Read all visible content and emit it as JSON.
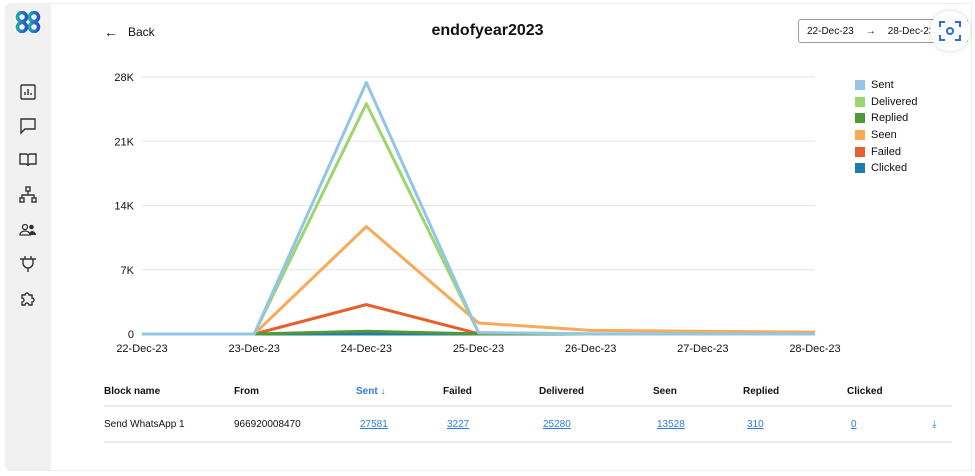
{
  "header": {
    "back_label": "Back",
    "title": "endofyear2023",
    "date_from": "22-Dec-23",
    "date_arrow": "→",
    "date_to": "28-Dec-23"
  },
  "sidebar": {
    "items": [
      "reports-icon",
      "chat-icon",
      "book-icon",
      "sitemap-icon",
      "users-icon",
      "plug-icon",
      "puzzle-icon"
    ]
  },
  "chart_data": {
    "type": "line",
    "x": [
      "22-Dec-23",
      "23-Dec-23",
      "24-Dec-23",
      "25-Dec-23",
      "26-Dec-23",
      "27-Dec-23",
      "28-Dec-23"
    ],
    "yticks": [
      "0",
      "7K",
      "14K",
      "21K",
      "28K"
    ],
    "ylim": [
      0,
      28000
    ],
    "grid": true,
    "legend_position": "right",
    "series": [
      {
        "name": "Sent",
        "color": "#93c5e6",
        "values": [
          0,
          0,
          27400,
          150,
          20,
          10,
          1
        ]
      },
      {
        "name": "Delivered",
        "color": "#9dd56e",
        "values": [
          0,
          0,
          25100,
          150,
          20,
          9,
          1
        ]
      },
      {
        "name": "Replied",
        "color": "#4e9a34",
        "values": [
          0,
          0,
          300,
          10,
          0,
          0,
          0
        ]
      },
      {
        "name": "Seen",
        "color": "#f7aa58",
        "values": [
          0,
          0,
          11700,
          1200,
          400,
          300,
          200
        ]
      },
      {
        "name": "Failed",
        "color": "#e85e2c",
        "values": [
          0,
          0,
          3200,
          30,
          0,
          0,
          0
        ]
      },
      {
        "name": "Clicked",
        "color": "#1f7bb0",
        "values": [
          0,
          0,
          0,
          0,
          0,
          0,
          0
        ]
      }
    ]
  },
  "table": {
    "headers": [
      "Block name",
      "From",
      "Sent ↓",
      "Failed",
      "Delivered",
      "Seen",
      "Replied",
      "Clicked"
    ],
    "rows": [
      {
        "block": "Send WhatsApp 1",
        "from": "966920008470",
        "sent": "27581",
        "failed": "3227",
        "delivered": "25280",
        "seen": "13528",
        "replied": "310",
        "clicked": "0"
      }
    ]
  }
}
